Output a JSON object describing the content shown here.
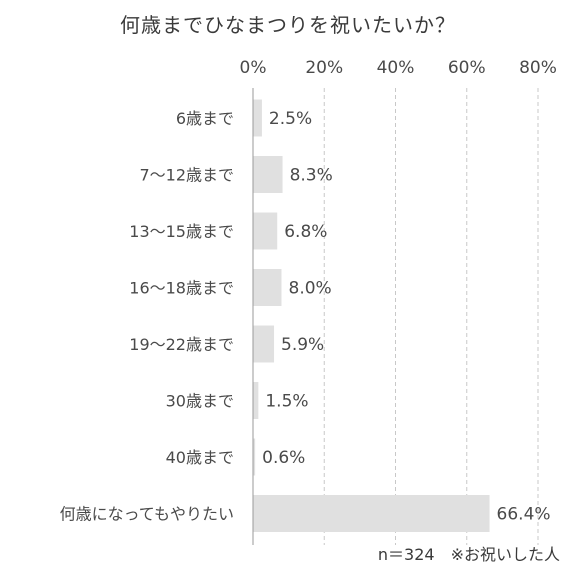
{
  "chart_data": {
    "type": "bar",
    "orientation": "horizontal",
    "title": "何歳までひなまつりを祝いたいか？",
    "categories": [
      "6歳まで",
      "7～12歳まで",
      "13～15歳まで",
      "16～18歳まで",
      "19～22歳まで",
      "30歳まで",
      "40歳まで",
      "何歳になってもやりたい"
    ],
    "values": [
      2.5,
      8.3,
      6.8,
      8.0,
      5.9,
      1.5,
      0.6,
      66.4
    ],
    "value_labels": [
      "2.5%",
      "8.3%",
      "6.8%",
      "8.0%",
      "5.9%",
      "1.5%",
      "0.6%",
      "66.4%"
    ],
    "xlim": [
      0,
      80
    ],
    "xticks": [
      0,
      20,
      40,
      60,
      80
    ],
    "xtick_labels": [
      "0%",
      "20%",
      "40%",
      "60%",
      "80%"
    ],
    "axis_position": "top",
    "grid": true,
    "bar_color": "#e0e0e0",
    "grid_color": "#c8c8c8",
    "note": "n＝324　※お祝いした人"
  }
}
